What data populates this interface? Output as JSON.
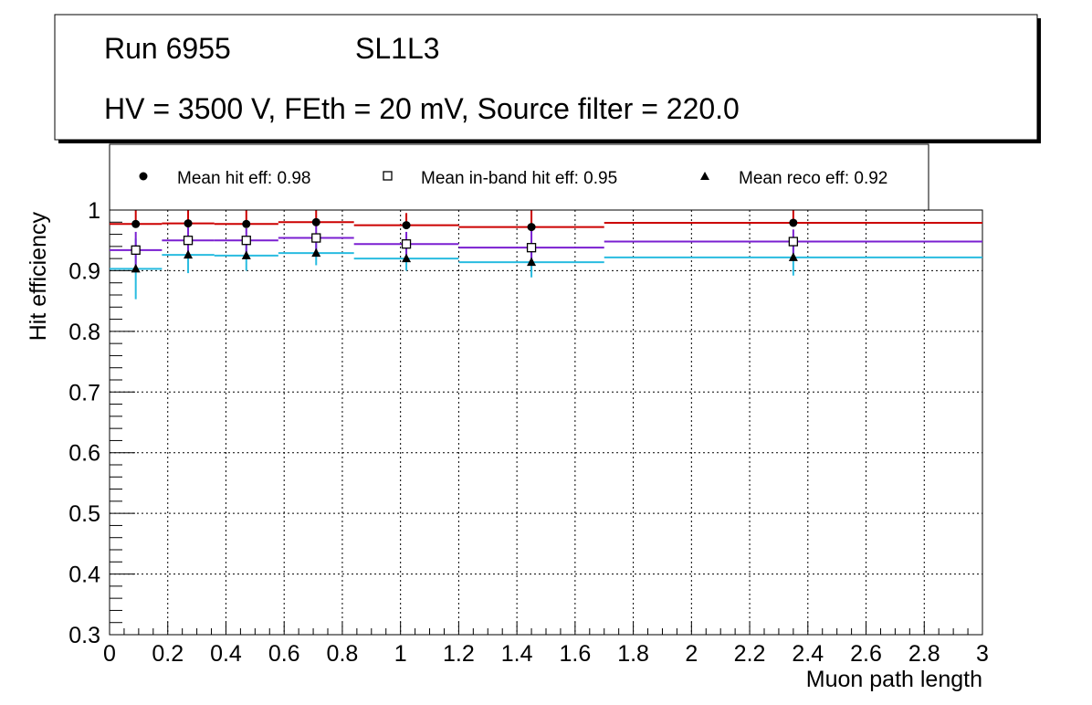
{
  "header": {
    "run_label": "Run 6955",
    "chamber": "SL1L3",
    "conditions": "HV = 3500 V, FEth = 20 mV, Source filter = 220.0"
  },
  "legend": {
    "hit": "Mean hit  eff: 0.98",
    "inband": "Mean in-band hit eff: 0.95",
    "reco": "Mean reco eff: 0.92"
  },
  "chart_data": {
    "type": "scatter",
    "xlabel": "Muon path length",
    "ylabel": "Hit efficiency",
    "xlim": [
      0,
      3
    ],
    "ylim": [
      0.3,
      1.0
    ],
    "grid": true,
    "x_ticks": [
      "0",
      "0.2",
      "0.4",
      "0.6",
      "0.8",
      "1",
      "1.2",
      "1.4",
      "1.6",
      "1.8",
      "2",
      "2.2",
      "2.4",
      "2.6",
      "2.8",
      "3"
    ],
    "y_ticks": [
      "0.3",
      "0.4",
      "0.5",
      "0.6",
      "0.7",
      "0.8",
      "0.9",
      "1"
    ],
    "bins": [
      {
        "lo": 0.0,
        "hi": 0.18,
        "x": 0.09
      },
      {
        "lo": 0.18,
        "hi": 0.36,
        "x": 0.27
      },
      {
        "lo": 0.36,
        "hi": 0.58,
        "x": 0.47
      },
      {
        "lo": 0.58,
        "hi": 0.84,
        "x": 0.71
      },
      {
        "lo": 0.84,
        "hi": 1.2,
        "x": 1.02
      },
      {
        "lo": 1.2,
        "hi": 1.7,
        "x": 1.45
      },
      {
        "lo": 1.7,
        "hi": 3.0,
        "x": 2.35
      }
    ],
    "series": [
      {
        "name": "Mean hit eff",
        "marker": "circle",
        "color": "#cc0000",
        "values": [
          0.977,
          0.978,
          0.977,
          0.98,
          0.975,
          0.972,
          0.979
        ],
        "err_lo": [
          0.0,
          0.0,
          0.0,
          0.0,
          0.0,
          0.0,
          0.0
        ],
        "err_hi": [
          0.025,
          0.022,
          0.023,
          0.02,
          0.02,
          0.028,
          0.021
        ]
      },
      {
        "name": "Mean in-band hit eff",
        "marker": "open-square",
        "color": "#7a1fd1",
        "values": [
          0.934,
          0.95,
          0.95,
          0.954,
          0.944,
          0.938,
          0.948
        ],
        "err_lo": [
          0.03,
          0.022,
          0.02,
          0.02,
          0.02,
          0.03,
          0.02
        ],
        "err_hi": [
          0.03,
          0.022,
          0.02,
          0.02,
          0.02,
          0.03,
          0.02
        ]
      },
      {
        "name": "Mean reco eff",
        "marker": "triangle",
        "color": "#29bce0",
        "values": [
          0.903,
          0.926,
          0.925,
          0.929,
          0.92,
          0.914,
          0.922
        ],
        "err_lo": [
          0.05,
          0.03,
          0.025,
          0.02,
          0.02,
          0.025,
          0.03
        ],
        "err_hi": [
          0.05,
          0.03,
          0.025,
          0.02,
          0.02,
          0.025,
          0.03
        ]
      }
    ]
  }
}
